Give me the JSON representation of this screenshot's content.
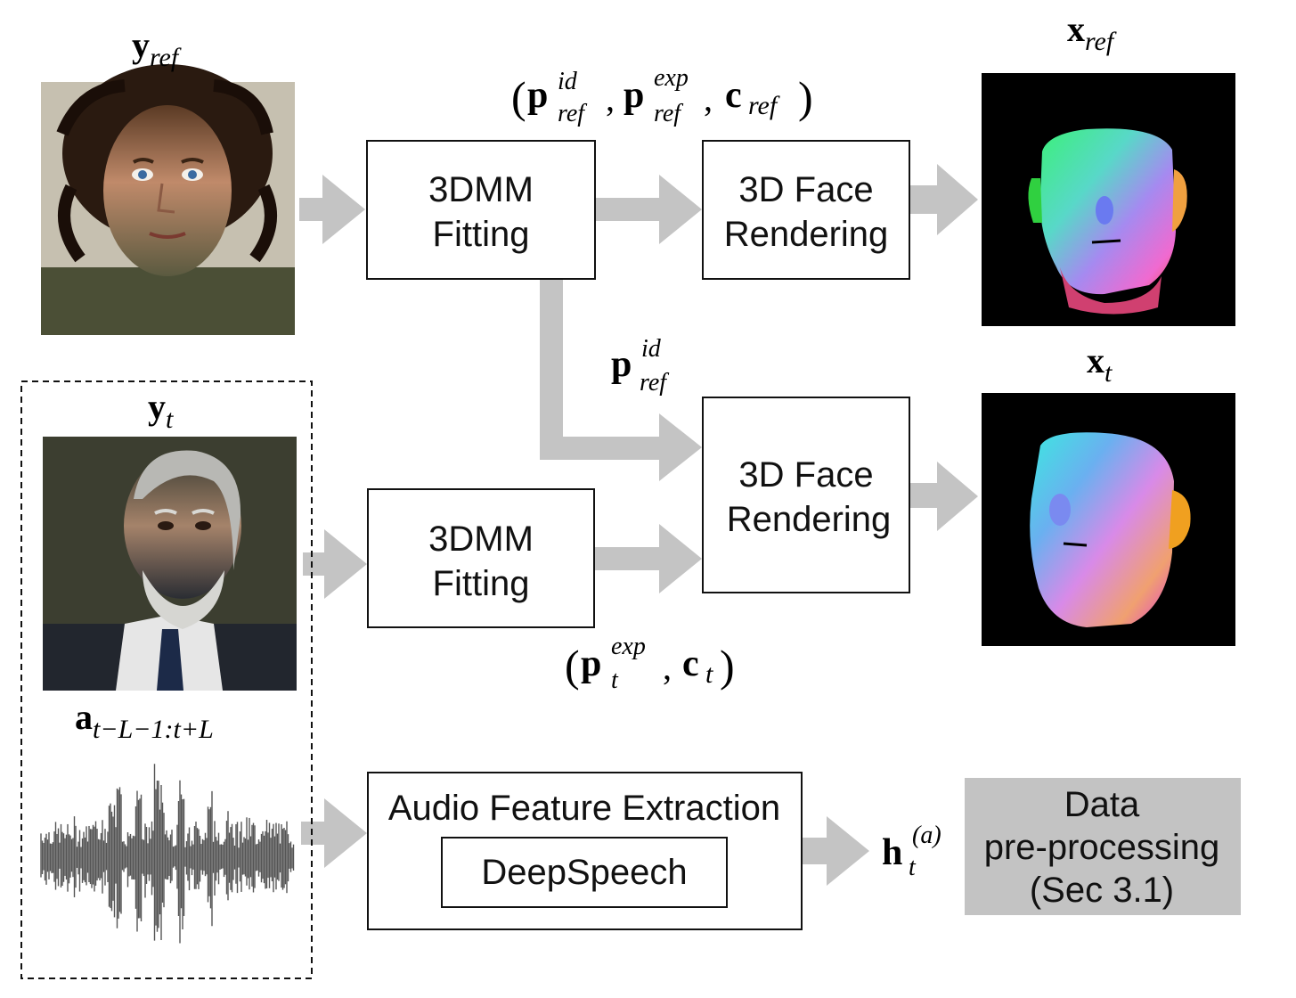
{
  "nodes": {
    "fit_ref": {
      "line1": "3DMM",
      "line2": "Fitting"
    },
    "render_ref": {
      "line1": "3D Face",
      "line2": "Rendering"
    },
    "fit_t": {
      "line1": "3DMM",
      "line2": "Fitting"
    },
    "render_t": {
      "line1": "3D Face",
      "line2": "Rendering"
    },
    "audio": {
      "title": "Audio Feature Extraction",
      "inner": "DeepSpeech"
    },
    "preproc": {
      "line1": "Data",
      "line2": "pre-processing",
      "line3": "(Sec 3.1)"
    }
  },
  "labels": {
    "y_ref": {
      "base": "y",
      "sub": "ref"
    },
    "y_t": {
      "base": "y",
      "sub": "t"
    },
    "a": {
      "base": "a",
      "sub": "t−L−1:t+L"
    },
    "x_ref": {
      "base": "x",
      "sub": "ref"
    },
    "x_t": {
      "base": "x",
      "sub": "t"
    },
    "h": {
      "base": "h",
      "sup": "(a)",
      "sub": "t"
    },
    "params_ref": {
      "open": "(",
      "p1": "p",
      "p1_sup": "id",
      "p1_sub": "ref",
      "comma1": ",",
      "p2": "p",
      "p2_sup": "exp",
      "p2_sub": "ref",
      "comma2": ",",
      "c": "c",
      "c_sub": "ref",
      "close": ")"
    },
    "p_id": {
      "base": "p",
      "sup": "id",
      "sub": "ref"
    },
    "params_t": {
      "open": "(",
      "p": "p",
      "p_sup": "exp",
      "p_sub": "t",
      "comma": ",",
      "c": "c",
      "c_sub": "t",
      "close": ")"
    }
  },
  "colors": {
    "arrow": "#c4c4c4",
    "preproc_fill": "#c3c3c3",
    "box_stroke": "#111111"
  }
}
